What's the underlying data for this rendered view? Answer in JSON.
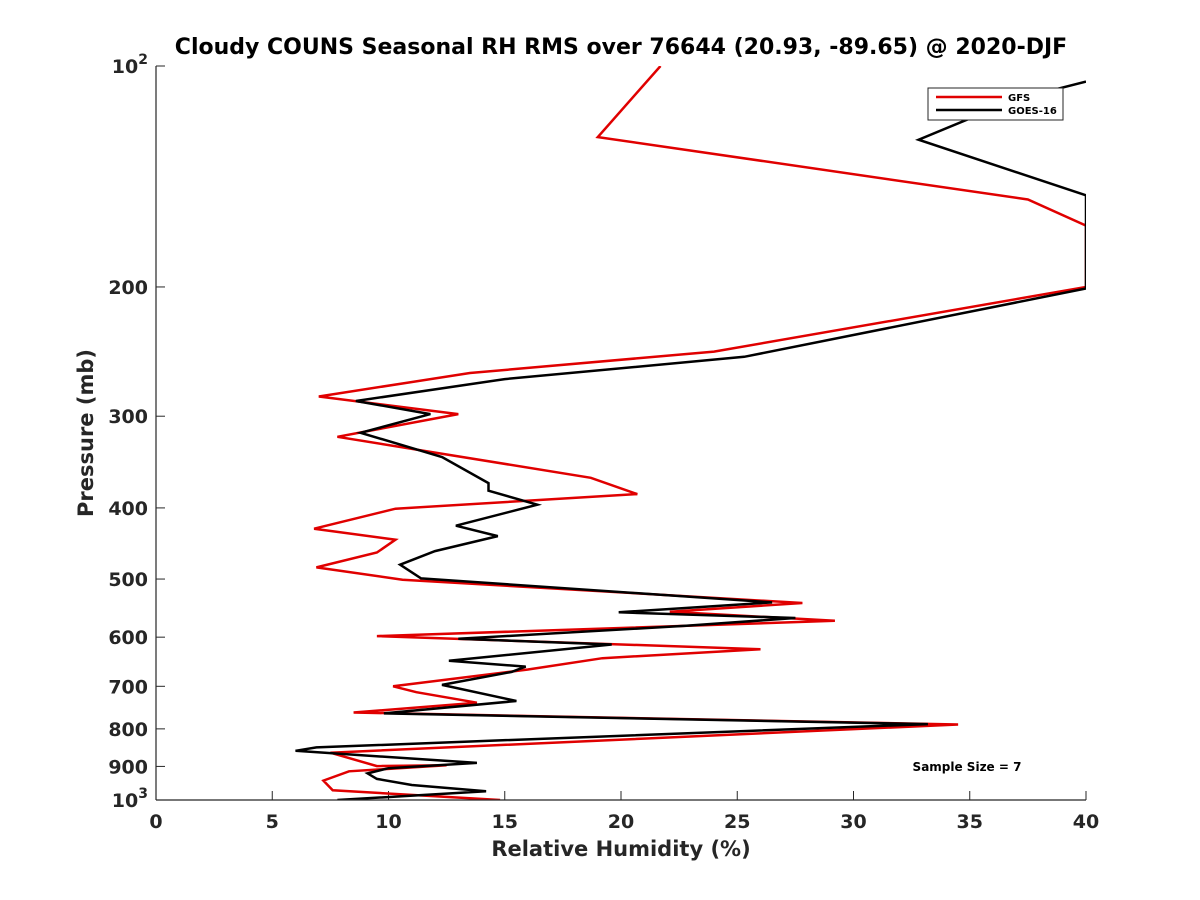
{
  "chart_data": {
    "type": "line",
    "title": "Cloudy COUNS Seasonal RH RMS over 76644 (20.93, -89.65) @ 2020-DJF",
    "xlabel": "Relative Humidity (%)",
    "ylabel": "Pressure (mb)",
    "xlim": [
      0,
      40
    ],
    "ylim": [
      100,
      1000
    ],
    "y_scale": "log",
    "y_direction": "reversed",
    "x_ticks": [
      "0",
      "5",
      "10",
      "15",
      "20",
      "25",
      "30",
      "35",
      "40"
    ],
    "y_ticks": [
      {
        "value": 100,
        "label": "10",
        "exponent": "2"
      },
      {
        "value": 200,
        "label": "200"
      },
      {
        "value": 300,
        "label": "300"
      },
      {
        "value": 400,
        "label": "400"
      },
      {
        "value": 500,
        "label": "500"
      },
      {
        "value": 600,
        "label": "600"
      },
      {
        "value": 700,
        "label": "700"
      },
      {
        "value": 800,
        "label": "800"
      },
      {
        "value": 900,
        "label": "900"
      },
      {
        "value": 1000,
        "label": "10",
        "exponent": "3"
      }
    ],
    "legend_position": "top-right",
    "series": [
      {
        "name": "GFS",
        "color": "#e00000",
        "points": [
          [
            21.7,
            100
          ],
          [
            19.0,
            125
          ],
          [
            37.5,
            152
          ],
          [
            40.0,
            165
          ],
          [
            40.0,
            200
          ],
          [
            24.0,
            245
          ],
          [
            13.5,
            262
          ],
          [
            7.0,
            282
          ],
          [
            13.0,
            298
          ],
          [
            7.8,
            320
          ],
          [
            18.7,
            364
          ],
          [
            20.7,
            383
          ],
          [
            10.3,
            401
          ],
          [
            6.8,
            427
          ],
          [
            10.3,
            442
          ],
          [
            9.5,
            460
          ],
          [
            6.9,
            482
          ],
          [
            10.6,
            501
          ],
          [
            27.8,
            539
          ],
          [
            22.1,
            554
          ],
          [
            29.2,
            570
          ],
          [
            9.5,
            598
          ],
          [
            26.0,
            623
          ],
          [
            19.2,
            641
          ],
          [
            16.0,
            664
          ],
          [
            10.2,
            700
          ],
          [
            11.2,
            713
          ],
          [
            13.8,
            737
          ],
          [
            8.5,
            760
          ],
          [
            34.5,
            789
          ],
          [
            7.5,
            862
          ],
          [
            9.5,
            899
          ],
          [
            12.5,
            897
          ],
          [
            8.3,
            914
          ],
          [
            7.2,
            941
          ],
          [
            7.6,
            970
          ],
          [
            14.8,
            1000
          ]
        ]
      },
      {
        "name": "GOES-16",
        "color": "#000000",
        "points": [
          [
            40.0,
            105
          ],
          [
            37.0,
            111
          ],
          [
            32.8,
            126
          ],
          [
            40.0,
            150
          ],
          [
            40.0,
            201
          ],
          [
            25.3,
            249
          ],
          [
            15.0,
            267
          ],
          [
            8.6,
            286
          ],
          [
            11.8,
            298
          ],
          [
            8.8,
            316
          ],
          [
            12.3,
            341
          ],
          [
            14.3,
            370
          ],
          [
            14.3,
            379
          ],
          [
            16.4,
            396
          ],
          [
            12.9,
            423
          ],
          [
            14.7,
            437
          ],
          [
            12.0,
            458
          ],
          [
            10.5,
            478
          ],
          [
            11.4,
            499
          ],
          [
            26.5,
            538
          ],
          [
            19.9,
            555
          ],
          [
            27.5,
            565
          ],
          [
            22.8,
            579
          ],
          [
            13.0,
            603
          ],
          [
            19.6,
            614
          ],
          [
            12.6,
            646
          ],
          [
            15.9,
            658
          ],
          [
            15.3,
            669
          ],
          [
            12.3,
            697
          ],
          [
            15.5,
            733
          ],
          [
            9.8,
            762
          ],
          [
            33.2,
            788
          ],
          [
            6.9,
            848
          ],
          [
            6.0,
            857
          ],
          [
            13.8,
            890
          ],
          [
            10.0,
            905
          ],
          [
            9.1,
            920
          ],
          [
            9.5,
            936
          ],
          [
            11.0,
            954
          ],
          [
            14.2,
            973
          ],
          [
            7.8,
            1000
          ]
        ]
      }
    ],
    "annotation": "Sample Size = 7"
  }
}
